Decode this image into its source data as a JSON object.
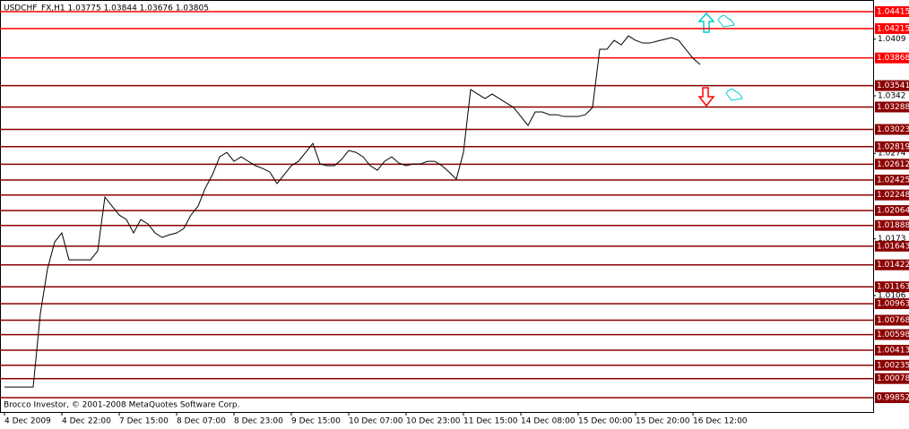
{
  "chart_data": {
    "type": "line",
    "title": "USDCHF_FX,H1  1.03775 1.03844 1.03676 1.03805",
    "footer": "Brocco Investor, © 2001-2008 MetaQuotes Software Corp.",
    "categories": [
      "4 Dec 2009",
      null,
      null,
      null,
      null,
      null,
      null,
      null,
      "4 Dec 22:00",
      null,
      null,
      null,
      null,
      null,
      null,
      null,
      "7 Dec 15:00",
      null,
      null,
      null,
      null,
      null,
      null,
      null,
      "8 Dec 07:00",
      null,
      null,
      null,
      null,
      null,
      null,
      null,
      "8 Dec 23:00",
      null,
      null,
      null,
      null,
      null,
      null,
      null,
      "9 Dec 15:00",
      null,
      null,
      null,
      null,
      null,
      null,
      null,
      "10 Dec 07:00",
      null,
      null,
      null,
      null,
      null,
      null,
      null,
      "10 Dec 23:00",
      null,
      null,
      null,
      null,
      null,
      null,
      null,
      "11 Dec 15:00",
      null,
      null,
      null,
      null,
      null,
      null,
      null,
      "14 Dec 08:00",
      null,
      null,
      null,
      null,
      null,
      null,
      null,
      "15 Dec 00:00",
      null,
      null,
      null,
      null,
      null,
      null,
      null,
      "15 Dec 20:00",
      null,
      null,
      null,
      null,
      null,
      null,
      null,
      "16 Dec 12:00",
      null
    ],
    "series": [
      {
        "name": "USDCHF",
        "color": "#000000",
        "values": [
          0.99978,
          0.99978,
          0.99978,
          0.99978,
          0.99978,
          1.00846,
          1.01376,
          1.01693,
          1.01799,
          1.01482,
          1.01482,
          1.01482,
          1.01482,
          1.01587,
          1.02223,
          1.02117,
          1.02011,
          1.01958,
          1.01799,
          1.01958,
          1.01905,
          1.01799,
          1.01746,
          1.01778,
          1.01799,
          1.01852,
          1.02011,
          1.02117,
          1.02329,
          1.02488,
          1.02699,
          1.02752,
          1.02646,
          1.02699,
          1.02646,
          1.02594,
          1.02562,
          1.02519,
          1.02382,
          1.02488,
          1.02594,
          1.02646,
          1.02752,
          1.02858,
          1.02615,
          1.02594,
          1.02594,
          1.02668,
          1.02774,
          1.02752,
          1.02699,
          1.02594,
          1.02541,
          1.02646,
          1.02699,
          1.02625,
          1.02594,
          1.02615,
          1.02615,
          1.02646,
          1.02646,
          1.02594,
          1.02519,
          1.02435,
          1.02752,
          1.03494,
          1.03441,
          1.03388,
          1.03441,
          1.03388,
          1.03335,
          1.03282,
          1.03176,
          1.0307,
          1.03229,
          1.03229,
          1.03197,
          1.03197,
          1.03176,
          1.03176,
          1.03176,
          1.03197,
          1.03282,
          1.0397,
          1.0397,
          1.04076,
          1.04023,
          1.04129,
          1.04076,
          1.04044,
          1.04044,
          1.04066,
          1.04087,
          1.04108,
          1.04076,
          1.0397,
          1.03864,
          1.0379
        ]
      }
    ],
    "ylim": [
      0.99683,
      1.04521
    ],
    "yticks": [
      1.0409,
      1.0342,
      1.0274,
      1.0173,
      1.0106
    ],
    "levels": [
      {
        "value": 1.04415,
        "color": "#ff0000"
      },
      {
        "value": 1.04215,
        "color": "#ff0000"
      },
      {
        "value": 1.03868,
        "color": "#ff0000"
      },
      {
        "value": 1.03541,
        "color": "#8b0000"
      },
      {
        "value": 1.03288,
        "color": "#8b0000"
      },
      {
        "value": 1.03023,
        "color": "#8b0000"
      },
      {
        "value": 1.02819,
        "color": "#8b0000"
      },
      {
        "value": 1.02612,
        "color": "#8b0000"
      },
      {
        "value": 1.02425,
        "color": "#8b0000"
      },
      {
        "value": 1.02248,
        "color": "#8b0000"
      },
      {
        "value": 1.02064,
        "color": "#8b0000"
      },
      {
        "value": 1.01888,
        "color": "#8b0000"
      },
      {
        "value": 1.01643,
        "color": "#8b0000"
      },
      {
        "value": 1.01422,
        "color": "#8b0000"
      },
      {
        "value": 1.01163,
        "color": "#8b0000"
      },
      {
        "value": 1.00963,
        "color": "#8b0000"
      },
      {
        "value": 1.00768,
        "color": "#8b0000"
      },
      {
        "value": 1.00598,
        "color": "#8b0000"
      },
      {
        "value": 1.00413,
        "color": "#8b0000"
      },
      {
        "value": 1.00235,
        "color": "#8b0000"
      },
      {
        "value": 1.00078,
        "color": "#8b0000"
      },
      {
        "value": 0.99852,
        "color": "#8b0000"
      }
    ]
  }
}
